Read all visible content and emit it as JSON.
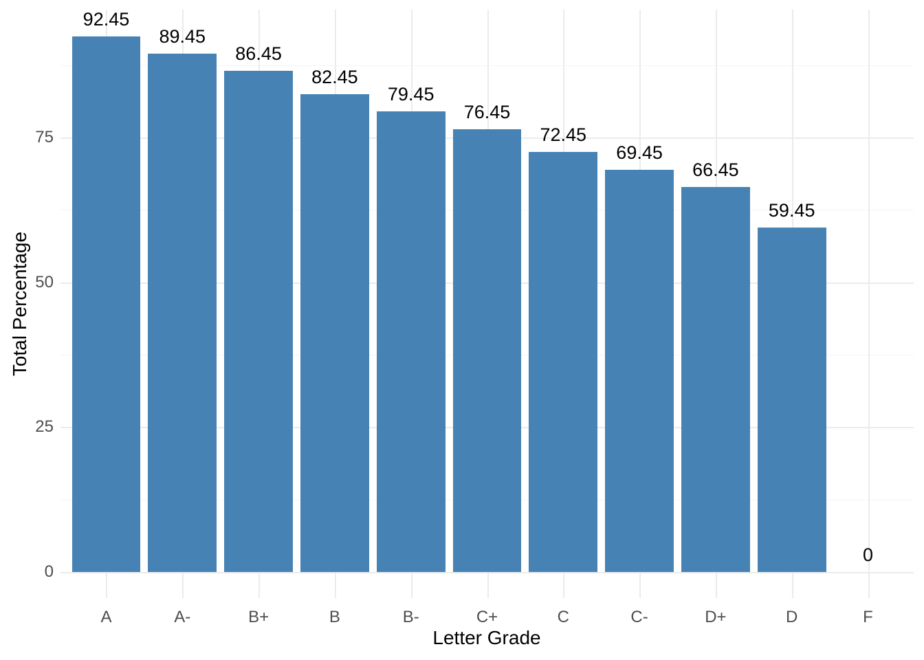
{
  "chart_data": {
    "type": "bar",
    "title": "",
    "categories": [
      "A",
      "A-",
      "B+",
      "B",
      "B-",
      "C+",
      "C",
      "C-",
      "D+",
      "D",
      "F"
    ],
    "values": [
      92.45,
      89.45,
      86.45,
      82.45,
      79.45,
      76.45,
      72.45,
      69.45,
      66.45,
      59.45,
      0
    ],
    "value_labels": [
      "92.45",
      "89.45",
      "86.45",
      "82.45",
      "79.45",
      "76.45",
      "72.45",
      "69.45",
      "66.45",
      "59.45",
      "0"
    ],
    "xlabel": "Letter Grade",
    "ylabel": "Total Percentage",
    "ylim": [
      -4.6,
      97.1
    ],
    "yticks_major": [
      0,
      25,
      50,
      75
    ],
    "yticks_minor": [
      12.5,
      37.5,
      62.5,
      87.5
    ],
    "grid": "on",
    "legend_position": "none",
    "colors": {
      "bar_fill": "#4682B4",
      "grid_major": "#EBEBEB",
      "grid_minor": "#F4F4F4",
      "tick_label": "#4D4D4D",
      "data_label": "#000000",
      "axis_title": "#000000",
      "background": "#FFFFFF"
    }
  }
}
